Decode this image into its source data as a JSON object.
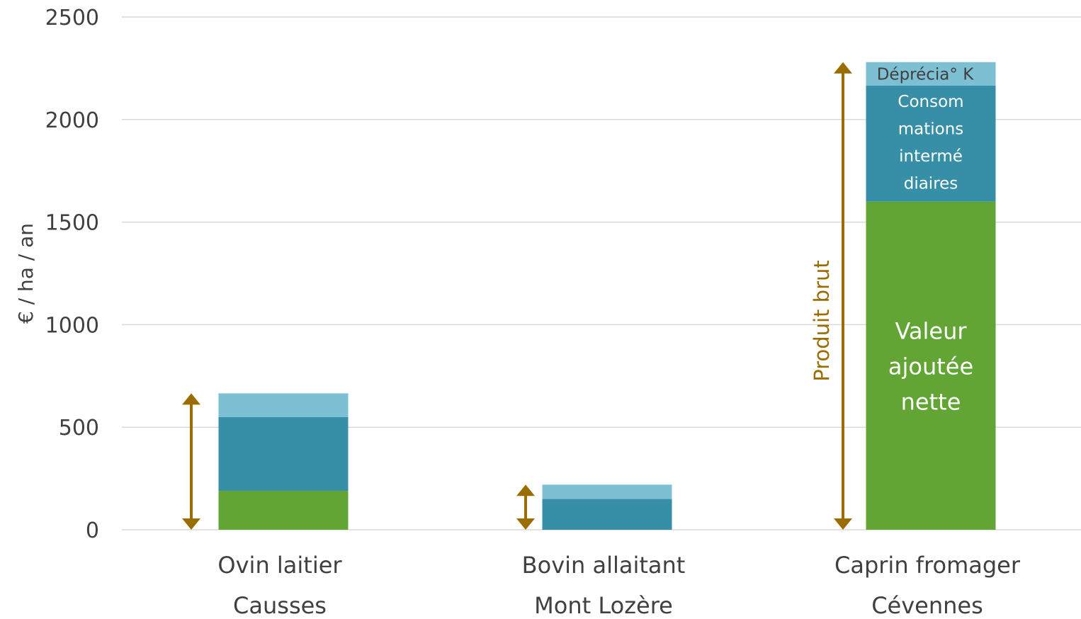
{
  "chart_data": {
    "type": "bar",
    "stacked": true,
    "ylabel": "€ / ha / an",
    "ylim": [
      0,
      2500
    ],
    "yticks": [
      0,
      500,
      1000,
      1500,
      2000,
      2500
    ],
    "grid": true,
    "categories": [
      {
        "line1": "Ovin laitier",
        "line2": "Causses"
      },
      {
        "line1": "Bovin allaitant",
        "line2": "Mont Lozère"
      },
      {
        "line1": "Caprin fromager",
        "line2": "Cévennes"
      }
    ],
    "series": [
      {
        "key": "van",
        "color": "#63a535",
        "values": [
          190,
          0,
          1600
        ]
      },
      {
        "key": "ci",
        "color": "#378ea7",
        "values": [
          360,
          150,
          565
        ]
      },
      {
        "key": "dep",
        "color": "#7dbfd3",
        "values": [
          115,
          70,
          115
        ]
      }
    ],
    "annotations": {
      "van_label": [
        "Valeur",
        "ajoutée",
        "nette"
      ],
      "ci_label": [
        "Consom",
        "mations",
        "intermé",
        "diaires"
      ],
      "dep_label": "Déprécia° K",
      "produit_brut_label": "Produit brut",
      "arrow_color": "#9a6d00"
    }
  }
}
